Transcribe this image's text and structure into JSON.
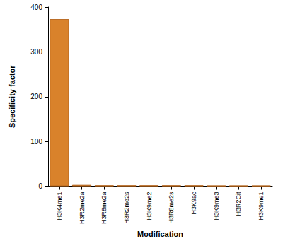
{
  "chart_data": {
    "type": "bar",
    "x_label": "Modification",
    "y_label": "Specificity factor",
    "categories": [
      "H3K4me1",
      "H3R2me2a",
      "H3R8me2a",
      "H3R2me2s",
      "H3K9me2",
      "H3R8me2s",
      "H3K9ac",
      "H3K9me3",
      "H3R2Cit",
      "H3K9me1"
    ],
    "values": [
      373,
      3,
      2,
      2,
      2,
      2,
      2,
      1.5,
      1.5,
      1.5
    ],
    "color": "#d9822b",
    "ylim": [
      0,
      400
    ],
    "yticks": [
      0,
      100,
      200,
      300,
      400
    ],
    "grid": false
  }
}
